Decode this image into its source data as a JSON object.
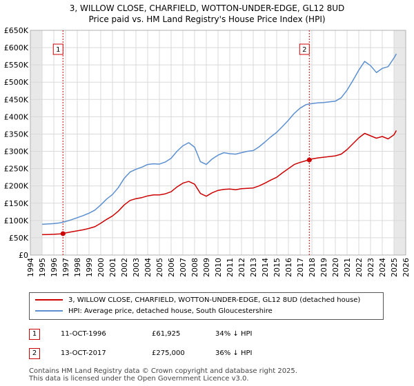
{
  "title_line1": "3, WILLOW CLOSE, CHARFIELD, WOTTON-UNDER-EDGE, GL12 8UD",
  "title_line2": "Price paid vs. HM Land Registry's House Price Index (HPI)",
  "chart_data": {
    "type": "line",
    "xlim": [
      1994,
      2026
    ],
    "ylim": [
      0,
      650000
    ],
    "grid": true,
    "y_ticks": [
      {
        "value": 0,
        "label": "£0"
      },
      {
        "value": 50000,
        "label": "£50K"
      },
      {
        "value": 100000,
        "label": "£100K"
      },
      {
        "value": 150000,
        "label": "£150K"
      },
      {
        "value": 200000,
        "label": "£200K"
      },
      {
        "value": 250000,
        "label": "£250K"
      },
      {
        "value": 300000,
        "label": "£300K"
      },
      {
        "value": 350000,
        "label": "£350K"
      },
      {
        "value": 400000,
        "label": "£400K"
      },
      {
        "value": 450000,
        "label": "£450K"
      },
      {
        "value": 500000,
        "label": "£500K"
      },
      {
        "value": 550000,
        "label": "£550K"
      },
      {
        "value": 600000,
        "label": "£600K"
      },
      {
        "value": 650000,
        "label": "£650K"
      }
    ],
    "x_ticks": [
      "1994",
      "1995",
      "1996",
      "1997",
      "1998",
      "1999",
      "2000",
      "2001",
      "2002",
      "2003",
      "2004",
      "2005",
      "2006",
      "2007",
      "2008",
      "2009",
      "2010",
      "2011",
      "2012",
      "2013",
      "2014",
      "2015",
      "2016",
      "2017",
      "2018",
      "2019",
      "2020",
      "2021",
      "2022",
      "2023",
      "2024",
      "2025",
      "2026"
    ],
    "shaded_ranges": [
      [
        1994,
        1995
      ],
      [
        2025,
        2026
      ]
    ],
    "sales": [
      {
        "label": "1",
        "x": 1996.78,
        "y": 61925
      },
      {
        "label": "2",
        "x": 2017.78,
        "y": 275000
      }
    ],
    "series": [
      {
        "name": "3, WILLOW CLOSE, CHARFIELD, WOTTON-UNDER-EDGE, GL12 8UD (detached house)",
        "color": "#cc0000",
        "x": [
          1995.0,
          1995.5,
          1996.0,
          1996.5,
          1996.78,
          1997.0,
          1997.5,
          1998.0,
          1998.5,
          1999.0,
          1999.5,
          2000.0,
          2000.5,
          2001.0,
          2001.5,
          2002.0,
          2002.5,
          2003.0,
          2003.5,
          2004.0,
          2004.5,
          2005.0,
          2005.5,
          2006.0,
          2006.5,
          2007.0,
          2007.5,
          2008.0,
          2008.5,
          2009.0,
          2009.5,
          2010.0,
          2010.5,
          2011.0,
          2011.5,
          2012.0,
          2012.5,
          2013.0,
          2013.5,
          2014.0,
          2014.5,
          2015.0,
          2015.5,
          2016.0,
          2016.5,
          2017.0,
          2017.5,
          2017.78,
          2018.0,
          2018.5,
          2019.0,
          2019.5,
          2020.0,
          2020.5,
          2021.0,
          2021.5,
          2022.0,
          2022.5,
          2023.0,
          2023.5,
          2024.0,
          2024.5,
          2025.0,
          2025.2
        ],
        "y": [
          59000,
          59500,
          60000,
          61000,
          61925,
          64000,
          67000,
          70000,
          73000,
          77000,
          82000,
          92000,
          103000,
          113000,
          127000,
          145000,
          158000,
          163000,
          166000,
          171000,
          174000,
          174000,
          177000,
          183000,
          197000,
          208000,
          213000,
          205000,
          178000,
          170000,
          180000,
          187000,
          190000,
          191000,
          189000,
          192000,
          193000,
          194000,
          200000,
          208000,
          217000,
          225000,
          238000,
          250000,
          262000,
          268000,
          273000,
          275000,
          278000,
          281000,
          283000,
          285000,
          287000,
          292000,
          305000,
          322000,
          339000,
          352000,
          345000,
          338000,
          343000,
          336000,
          348000,
          360000
        ]
      },
      {
        "name": "HPI: Average price, detached house, South Gloucestershire",
        "color": "#5b8fd0",
        "x": [
          1995.0,
          1995.5,
          1996.0,
          1996.5,
          1997.0,
          1997.5,
          1998.0,
          1998.5,
          1999.0,
          1999.5,
          2000.0,
          2000.5,
          2001.0,
          2001.5,
          2002.0,
          2002.5,
          2003.0,
          2003.5,
          2004.0,
          2004.5,
          2005.0,
          2005.5,
          2006.0,
          2006.5,
          2007.0,
          2007.5,
          2008.0,
          2008.5,
          2009.0,
          2009.5,
          2010.0,
          2010.5,
          2011.0,
          2011.5,
          2012.0,
          2012.5,
          2013.0,
          2013.5,
          2014.0,
          2014.5,
          2015.0,
          2015.5,
          2016.0,
          2016.5,
          2017.0,
          2017.5,
          2018.0,
          2018.5,
          2019.0,
          2019.5,
          2020.0,
          2020.5,
          2021.0,
          2021.5,
          2022.0,
          2022.5,
          2023.0,
          2023.5,
          2024.0,
          2024.5,
          2025.0,
          2025.2
        ],
        "y": [
          89000,
          90000,
          91000,
          93000,
          97000,
          102000,
          108000,
          114000,
          121000,
          130000,
          145000,
          162000,
          175000,
          195000,
          222000,
          240000,
          248000,
          254000,
          262000,
          264000,
          263000,
          269000,
          280000,
          300000,
          316000,
          325000,
          312000,
          270000,
          262000,
          278000,
          289000,
          296000,
          293000,
          292000,
          296000,
          300000,
          302000,
          313000,
          327000,
          342000,
          355000,
          372000,
          390000,
          410000,
          425000,
          435000,
          438000,
          440000,
          441000,
          443000,
          445000,
          455000,
          477000,
          505000,
          535000,
          560000,
          548000,
          528000,
          540000,
          545000,
          570000,
          582000
        ]
      }
    ]
  },
  "legend": {
    "items": [
      {
        "label": "3, WILLOW CLOSE, CHARFIELD, WOTTON-UNDER-EDGE, GL12 8UD (detached house)",
        "color": "#cc0000"
      },
      {
        "label": "HPI: Average price, detached house, South Gloucestershire",
        "color": "#5b8fd0"
      }
    ]
  },
  "transactions": [
    {
      "num": "1",
      "date": "11-OCT-1996",
      "price": "£61,925",
      "hpi": "34% ↓ HPI"
    },
    {
      "num": "2",
      "date": "13-OCT-2017",
      "price": "£275,000",
      "hpi": "36% ↓ HPI"
    }
  ],
  "footer": {
    "line1": "Contains HM Land Registry data © Crown copyright and database right 2025.",
    "line2": "This data is licensed under the Open Government Licence v3.0."
  }
}
